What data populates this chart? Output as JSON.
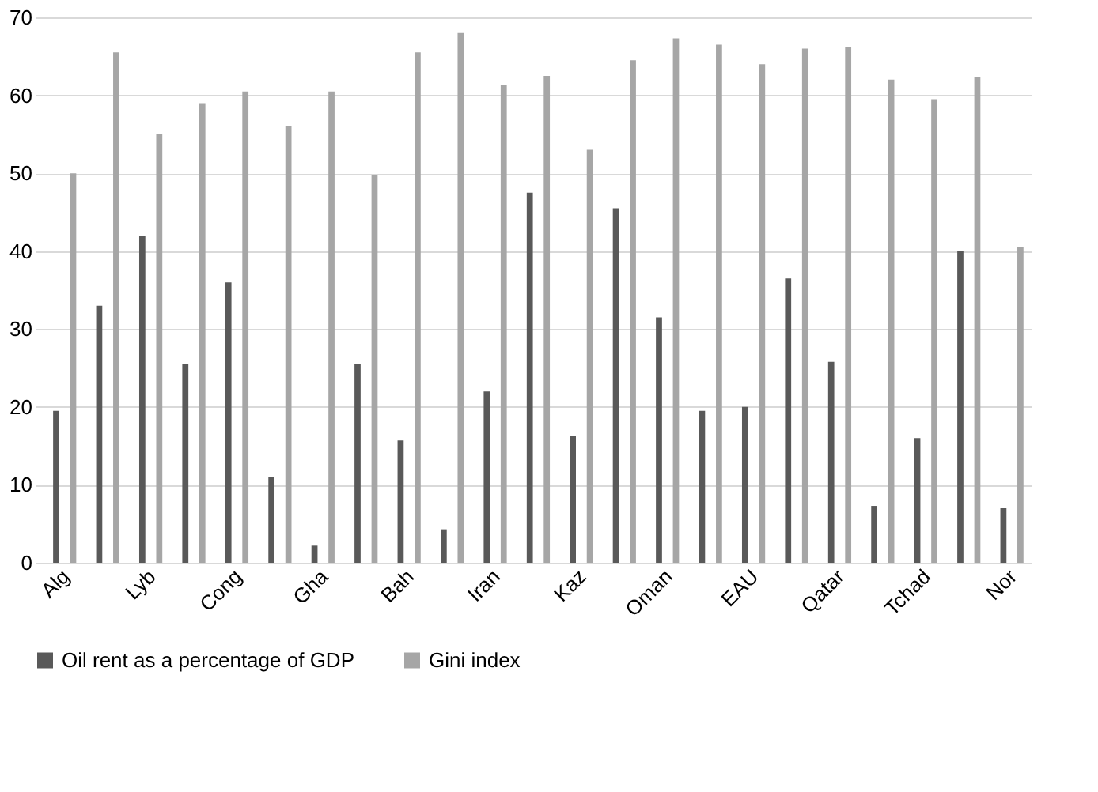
{
  "chart_data": {
    "type": "bar",
    "categories": [
      "Alg",
      null,
      "Lyb",
      null,
      "Cong",
      null,
      "Gha",
      null,
      "Bah",
      null,
      "Iran",
      null,
      "Kaz",
      null,
      "Oman",
      null,
      "EAU",
      null,
      "Qatar",
      null,
      "Tchad",
      null,
      "Nor"
    ],
    "series": [
      {
        "name": "Oil rent as a percentage of GDP",
        "color": "#595959",
        "values": [
          19.5,
          33,
          42,
          25.5,
          36,
          11,
          2.2,
          25.5,
          15.7,
          4.3,
          22,
          47.5,
          16.3,
          45.5,
          31.5,
          19.5,
          20,
          36.5,
          25.8,
          7.3,
          16,
          40,
          7
        ]
      },
      {
        "name": "Gini index",
        "color": "#a6a6a6",
        "values": [
          50,
          65.5,
          55,
          59,
          60.5,
          56,
          60.5,
          49.7,
          65.5,
          68,
          61.3,
          62.5,
          53,
          64.5,
          67.3,
          66.5,
          64,
          66,
          66.2,
          62,
          59.5,
          62.3,
          40.5
        ]
      }
    ],
    "ylim": [
      0,
      70
    ],
    "yticks": [
      0,
      10,
      20,
      30,
      40,
      50,
      60,
      70
    ],
    "grid": "y",
    "legend": "bottom"
  }
}
